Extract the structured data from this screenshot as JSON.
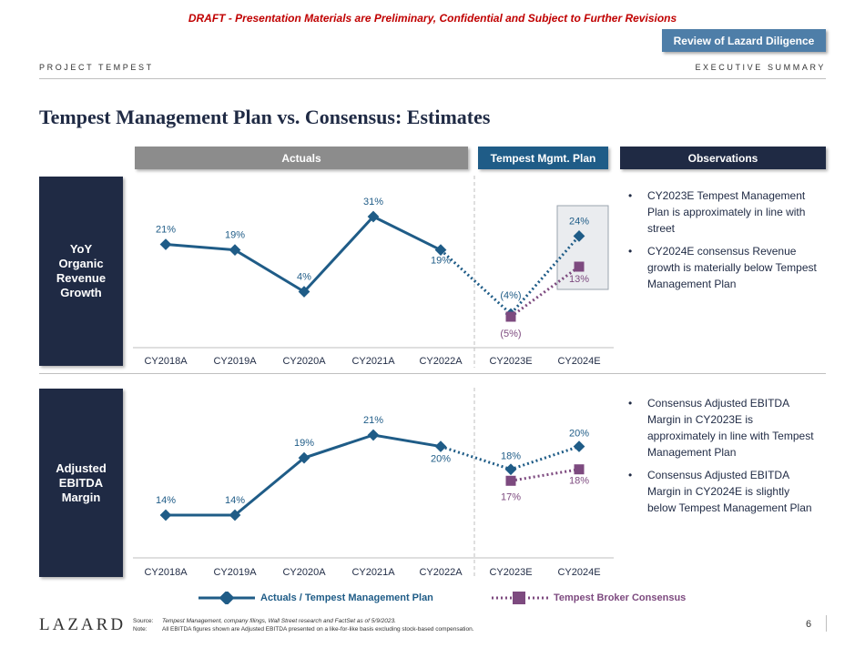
{
  "banner": {
    "draft": "DRAFT - Presentation Materials are Preliminary, Confidential and Subject to Further Revisions"
  },
  "review_button": "Review of Lazard Diligence",
  "header": {
    "project": "PROJECT TEMPEST",
    "section": "EXECUTIVE SUMMARY"
  },
  "title": "Tempest Management Plan vs. Consensus: Estimates",
  "columns": {
    "actuals": "Actuals",
    "plan": "Tempest Mgmt. Plan",
    "observations": "Observations"
  },
  "rows": [
    {
      "label": "YoY Organic Revenue Growth"
    },
    {
      "label": "Adjusted EBITDA Margin"
    }
  ],
  "observations": {
    "row1": [
      "CY2023E Tempest Management Plan is approximately in line with street",
      "CY2024E consensus Revenue growth is materially below Tempest Management Plan"
    ],
    "row2": [
      "Consensus Adjusted EBITDA Margin in CY2023E is approximately in line with Tempest Management Plan",
      "Consensus Adjusted EBITDA Margin in CY2024E is slightly below Tempest Management Plan"
    ]
  },
  "chart_data": [
    {
      "type": "line",
      "title": "YoY Organic Revenue Growth",
      "categories": [
        "CY2018A",
        "CY2019A",
        "CY2020A",
        "CY2021A",
        "CY2022A",
        "CY2023E",
        "CY2024E"
      ],
      "ylim": [
        -5,
        31
      ],
      "series": [
        {
          "name": "Actuals / Tempest Management Plan",
          "values": [
            21,
            19,
            4,
            31,
            19,
            -4,
            24
          ],
          "labels": [
            "21%",
            "19%",
            "4%",
            "31%",
            "19%",
            "(4%)",
            "24%"
          ],
          "color": "#1f5c87"
        },
        {
          "name": "Tempest Broker Consensus",
          "values": [
            null,
            null,
            null,
            null,
            null,
            -5,
            13
          ],
          "labels": [
            "",
            "",
            "",
            "",
            "",
            "(5%)",
            "13%"
          ],
          "color": "#7d4a7f"
        }
      ]
    },
    {
      "type": "line",
      "title": "Adjusted EBITDA Margin",
      "categories": [
        "CY2018A",
        "CY2019A",
        "CY2020A",
        "CY2021A",
        "CY2022A",
        "CY2023E",
        "CY2024E"
      ],
      "ylim": [
        14,
        21
      ],
      "series": [
        {
          "name": "Actuals / Tempest Management Plan",
          "values": [
            14,
            14,
            19,
            21,
            20,
            18,
            20
          ],
          "labels": [
            "14%",
            "14%",
            "19%",
            "21%",
            "20%",
            "18%",
            "20%"
          ],
          "color": "#1f5c87"
        },
        {
          "name": "Tempest Broker Consensus",
          "values": [
            null,
            null,
            null,
            null,
            null,
            17,
            18
          ],
          "labels": [
            "",
            "",
            "",
            "",
            "",
            "17%",
            "18%"
          ],
          "color": "#7d4a7f"
        }
      ]
    }
  ],
  "legend": {
    "series1": "Actuals / Tempest Management Plan",
    "series2": "Tempest Broker Consensus"
  },
  "footer": {
    "logo": "LAZARD",
    "source_key": "Source:",
    "source_text": "Tempest Management, company filings, Wall Street research and FactSet as of 5/9/2023.",
    "note_key": "Note:",
    "note_text": "All EBITDA figures shown are Adjusted EBITDA presented on a like-for-like basis excluding stock-based compensation.",
    "page": "6"
  },
  "colors": {
    "navy": "#1f2a44",
    "blue": "#1f5c87",
    "purple": "#7d4a7f",
    "grey": "#8c8c8c"
  }
}
